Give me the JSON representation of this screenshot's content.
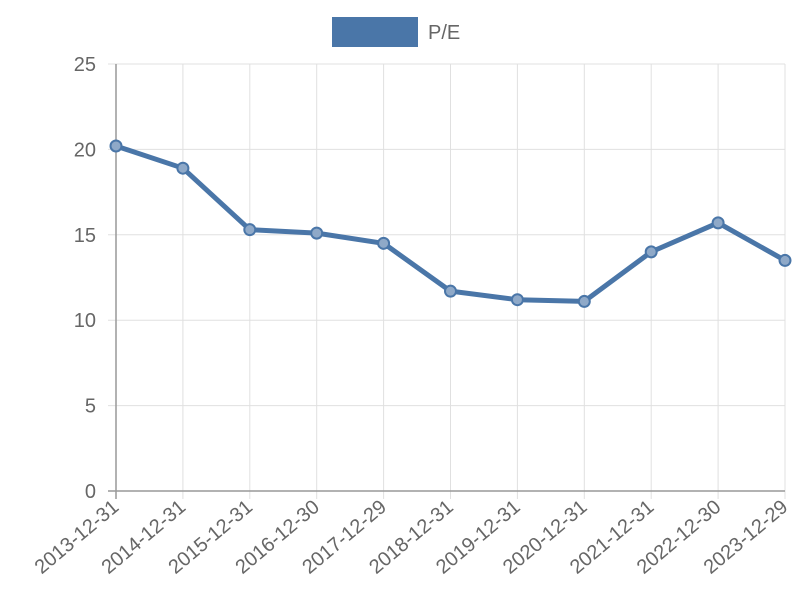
{
  "chart_data": {
    "type": "line",
    "categories": [
      "2013-12-31",
      "2014-12-31",
      "2015-12-31",
      "2016-12-30",
      "2017-12-29",
      "2018-12-31",
      "2019-12-31",
      "2020-12-31",
      "2021-12-31",
      "2022-12-30",
      "2023-12-29"
    ],
    "series": [
      {
        "name": "P/E",
        "values": [
          20.2,
          18.9,
          15.3,
          15.1,
          14.5,
          11.7,
          11.2,
          11.1,
          14.0,
          15.7,
          13.5
        ],
        "color": "#4a76a8"
      }
    ],
    "xlabel": "",
    "ylabel": "",
    "ylim": [
      0,
      25
    ],
    "yticks": [
      "0",
      "5",
      "10",
      "15",
      "20",
      "25"
    ],
    "grid": true,
    "legend_position": "top-center"
  },
  "colors": {
    "series": "#4a76a8",
    "grid": "#e0e0e0",
    "axis": "#999999",
    "text": "#666666"
  }
}
